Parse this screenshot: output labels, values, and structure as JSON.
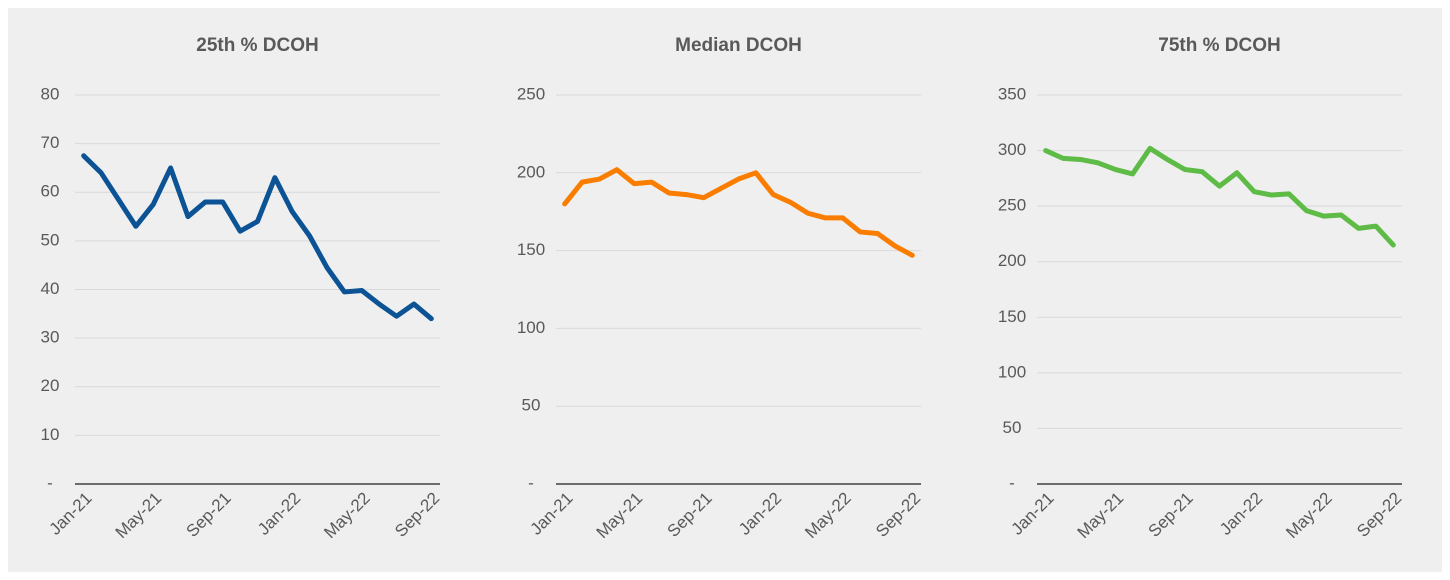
{
  "chart_data": [
    {
      "type": "line",
      "title": "25th % DCOH",
      "categories": [
        "Jan-21",
        null,
        null,
        null,
        "May-21",
        null,
        null,
        null,
        "Sep-21",
        null,
        null,
        null,
        "Jan-22",
        null,
        null,
        null,
        "May-22",
        null,
        null,
        null,
        "Sep-22"
      ],
      "values": [
        67.5,
        64,
        58.5,
        53,
        57.5,
        65,
        55,
        58,
        58,
        52,
        54,
        63,
        56,
        51,
        44.5,
        39.5,
        39.8,
        37,
        34.5,
        37,
        34
      ],
      "color": "#0b5394",
      "ylim": [
        0,
        80
      ],
      "yticks": [
        {
          "value": 0,
          "label": "-"
        },
        10,
        20,
        30,
        40,
        50,
        60,
        70,
        80
      ],
      "grid": true
    },
    {
      "type": "line",
      "title": "Median DCOH",
      "categories": [
        "Jan-21",
        null,
        null,
        null,
        "May-21",
        null,
        null,
        null,
        "Sep-21",
        null,
        null,
        null,
        "Jan-22",
        null,
        null,
        null,
        "May-22",
        null,
        null,
        null,
        "Sep-22"
      ],
      "values": [
        180,
        194,
        196,
        202,
        193,
        194,
        187,
        186,
        184,
        190,
        196,
        200,
        186,
        181,
        174,
        171,
        171,
        162,
        161,
        153,
        147
      ],
      "color": "#fa7d00",
      "ylim": [
        0,
        250
      ],
      "yticks": [
        {
          "value": 0,
          "label": "-"
        },
        50,
        100,
        150,
        200,
        250
      ],
      "grid": true
    },
    {
      "type": "line",
      "title": "75th % DCOH",
      "categories": [
        "Jan-21",
        null,
        null,
        null,
        "May-21",
        null,
        null,
        null,
        "Sep-21",
        null,
        null,
        null,
        "Jan-22",
        null,
        null,
        null,
        "May-22",
        null,
        null,
        null,
        "Sep-22"
      ],
      "values": [
        300,
        293,
        292,
        289,
        283,
        279,
        302,
        292,
        283,
        281,
        268,
        280,
        263,
        260,
        261,
        246,
        241,
        242,
        230,
        232,
        215
      ],
      "color": "#5dbb46",
      "ylim": [
        0,
        350
      ],
      "yticks": [
        {
          "value": 0,
          "label": "-"
        },
        50,
        100,
        150,
        200,
        250,
        300,
        350
      ],
      "grid": true
    }
  ]
}
